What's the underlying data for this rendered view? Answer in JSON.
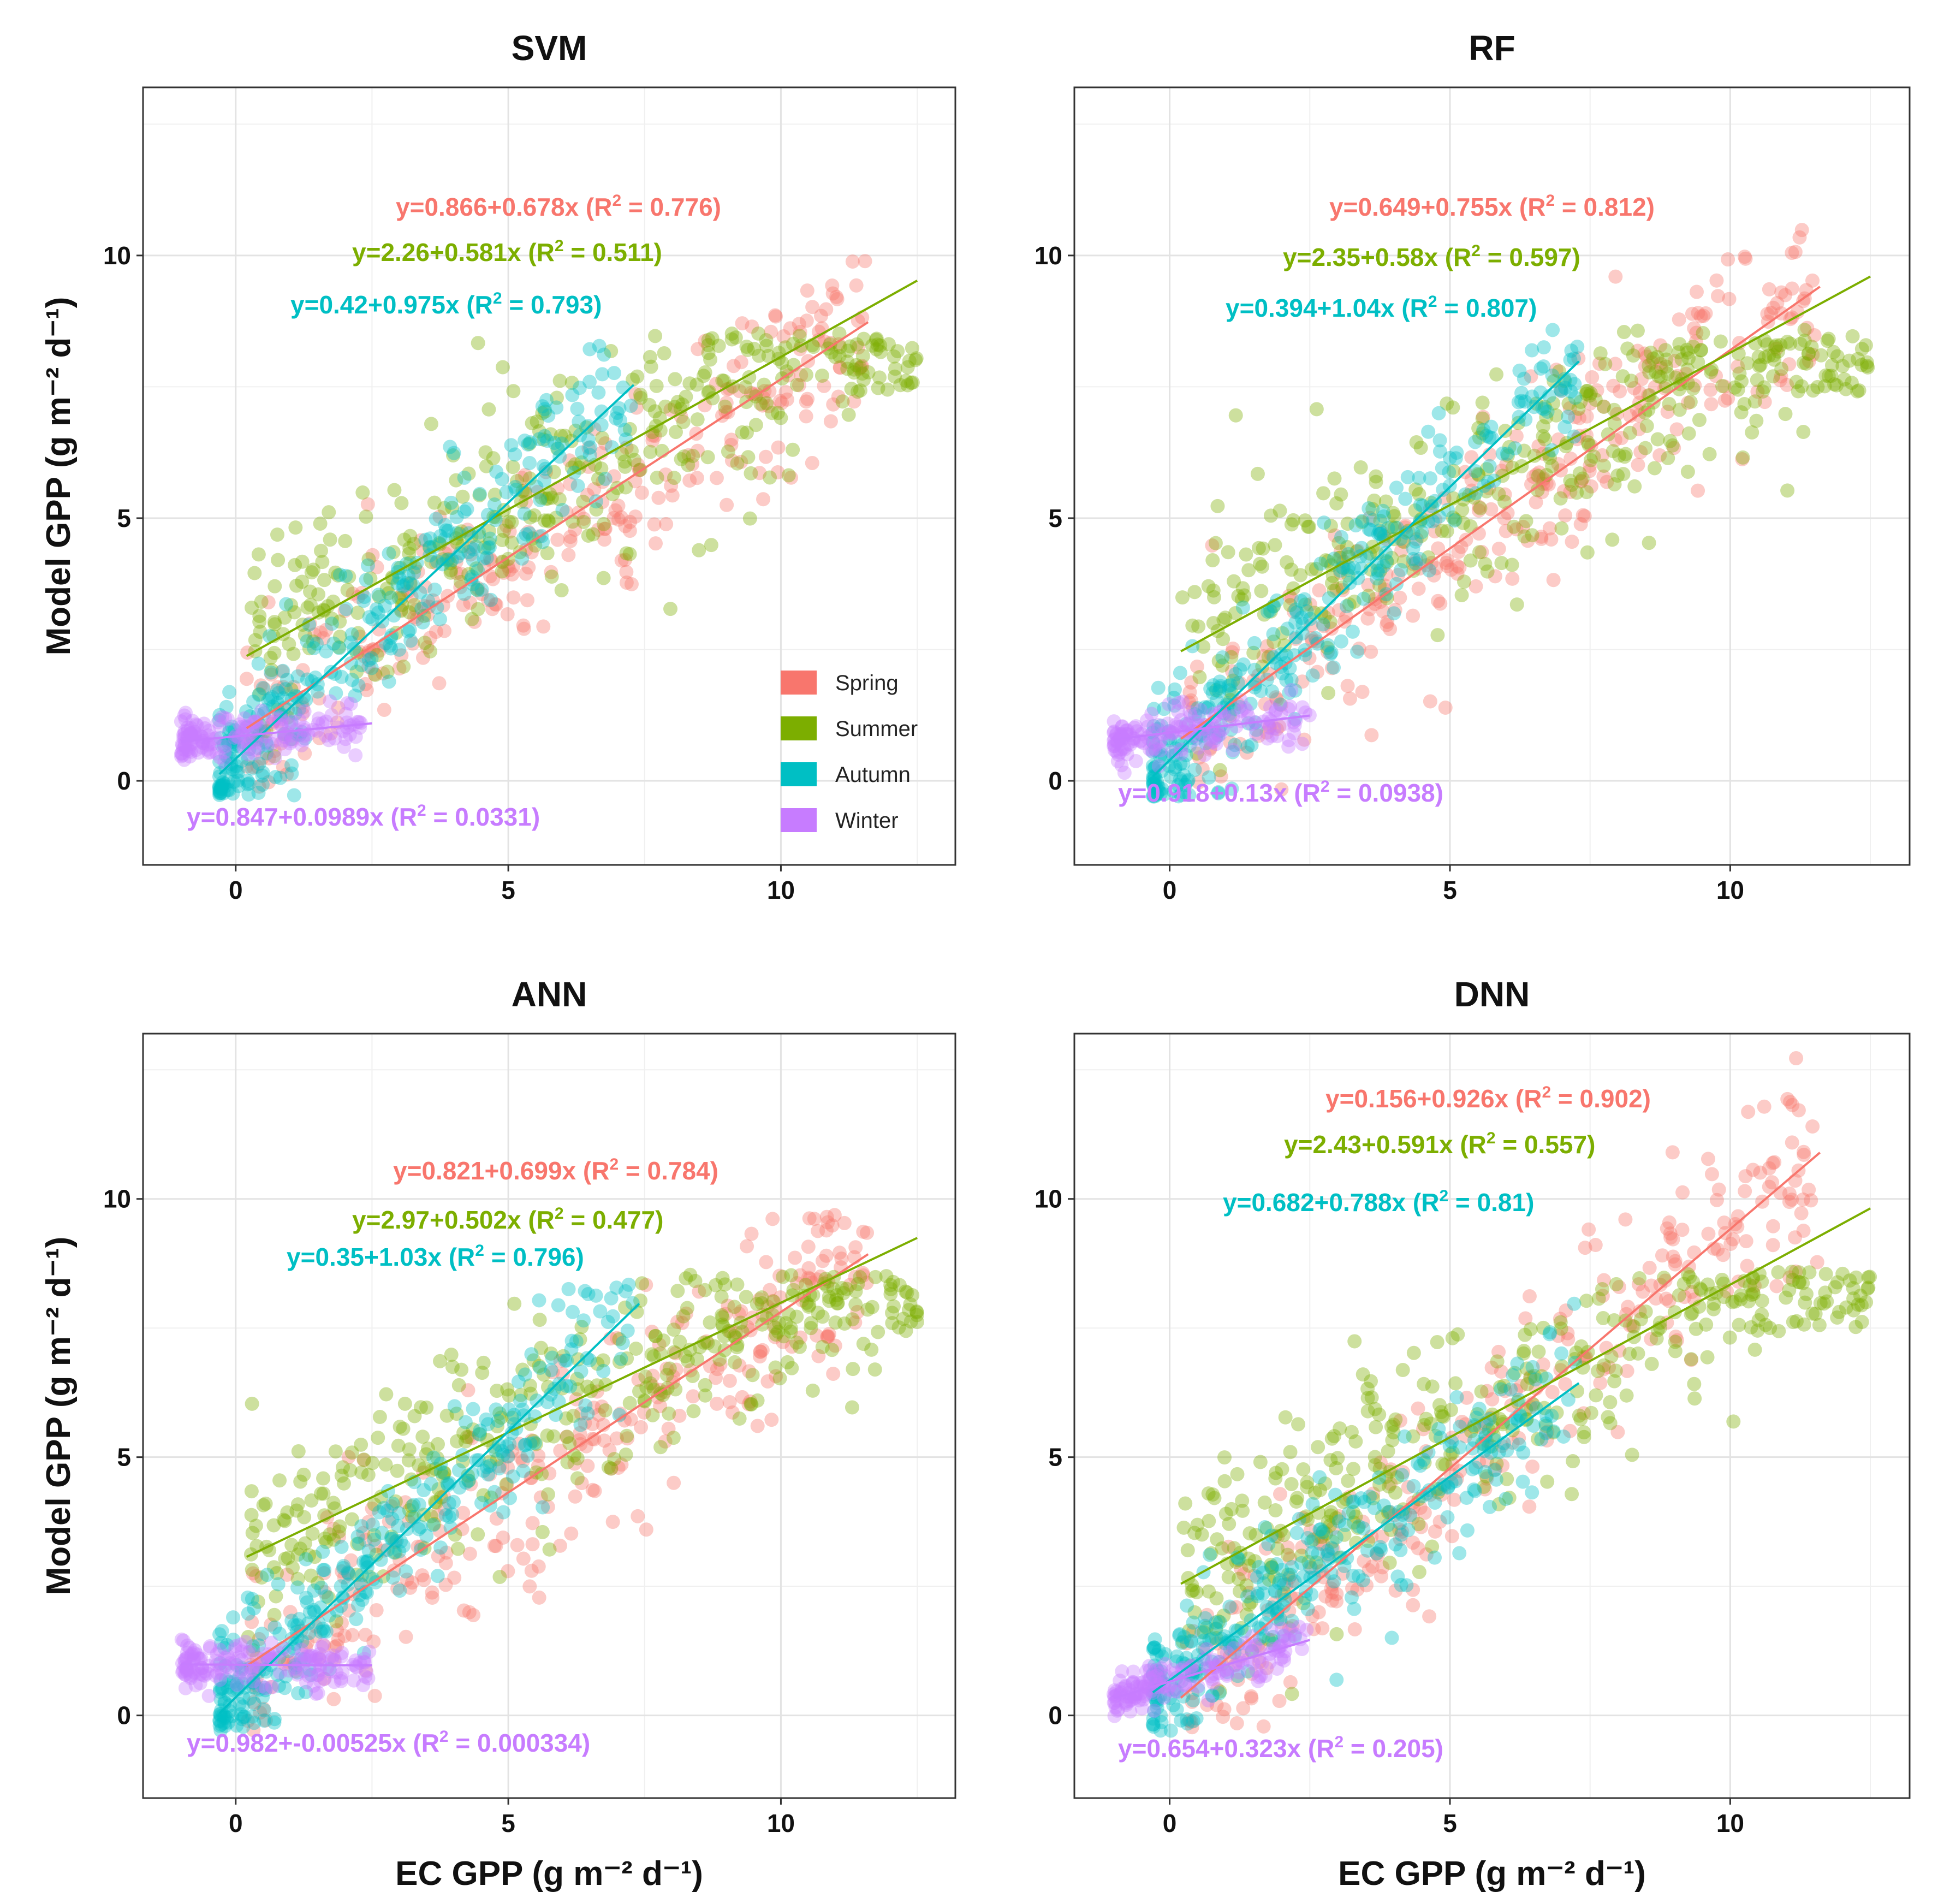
{
  "chart_data": {
    "type": "scatter",
    "xlabel": "EC GPP (g m⁻² d⁻¹)",
    "ylabel": "Model GPP (g m⁻² d⁻¹)",
    "xlim": [
      -1.7,
      13.2
    ],
    "ylim": [
      -1.6,
      13.2
    ],
    "xticks": [
      0,
      5,
      10
    ],
    "yticks": [
      0,
      5,
      10
    ],
    "legend": {
      "position": "inside-bottom-right",
      "entries": [
        "Spring",
        "Summer",
        "Autumn",
        "Winter"
      ]
    },
    "colors": {
      "Spring": "#F8766D",
      "Summer": "#7CAE00",
      "Autumn": "#00BFC4",
      "Winter": "#C77CFF"
    },
    "panels": [
      {
        "title": "SVM",
        "fits": [
          {
            "season": "Spring",
            "intercept": 0.866,
            "slope": 0.678,
            "r2": "0.776",
            "x_range": [
              0.2,
              11.6
            ],
            "label_prefix": "y=0.866+0.678x (R",
            "label_suffix": " = 0.776)"
          },
          {
            "season": "Summer",
            "intercept": 2.26,
            "slope": 0.581,
            "r2": "0.511",
            "x_range": [
              0.2,
              12.5
            ],
            "label_prefix": "y=2.26+0.581x (R",
            "label_suffix": " = 0.511)"
          },
          {
            "season": "Autumn",
            "intercept": 0.42,
            "slope": 0.975,
            "r2": "0.793",
            "x_range": [
              -0.3,
              7.3
            ],
            "label_prefix": "y=0.42+0.975x (R",
            "label_suffix": " = 0.793)"
          },
          {
            "season": "Winter",
            "intercept": 0.847,
            "slope": 0.0989,
            "r2": "0.0331",
            "x_range": [
              -1.0,
              2.5
            ],
            "label_prefix": "y=0.847+0.0989x (R",
            "label_suffix": " = 0.0331)"
          }
        ]
      },
      {
        "title": "RF",
        "fits": [
          {
            "season": "Spring",
            "intercept": 0.649,
            "slope": 0.755,
            "r2": "0.812",
            "x_range": [
              0.2,
              11.6
            ],
            "label_prefix": "y=0.649+0.755x (R",
            "label_suffix": " = 0.812)"
          },
          {
            "season": "Summer",
            "intercept": 2.35,
            "slope": 0.58,
            "r2": "0.597",
            "x_range": [
              0.2,
              12.5
            ],
            "label_prefix": "y=2.35+0.58x (R",
            "label_suffix": " = 0.597)"
          },
          {
            "season": "Autumn",
            "intercept": 0.394,
            "slope": 1.04,
            "r2": "0.807",
            "x_range": [
              -0.3,
              7.3
            ],
            "label_prefix": "y=0.394+1.04x (R",
            "label_suffix": " = 0.807)"
          },
          {
            "season": "Winter",
            "intercept": 0.918,
            "slope": 0.13,
            "r2": "0.0938",
            "x_range": [
              -1.0,
              2.5
            ],
            "label_prefix": "y=0.918+0.13x (R",
            "label_suffix": " = 0.0938)"
          }
        ]
      },
      {
        "title": "ANN",
        "fits": [
          {
            "season": "Spring",
            "intercept": 0.821,
            "slope": 0.699,
            "r2": "0.784",
            "x_range": [
              0.2,
              11.6
            ],
            "label_prefix": "y=0.821+0.699x (R",
            "label_suffix": " = 0.784)"
          },
          {
            "season": "Summer",
            "intercept": 2.97,
            "slope": 0.502,
            "r2": "0.477",
            "x_range": [
              0.2,
              12.5
            ],
            "label_prefix": "y=2.97+0.502x (R",
            "label_suffix": " = 0.477)"
          },
          {
            "season": "Autumn",
            "intercept": 0.35,
            "slope": 1.03,
            "r2": "0.796",
            "x_range": [
              -0.3,
              7.4
            ],
            "label_prefix": "y=0.35+1.03x (R",
            "label_suffix": " = 0.796)"
          },
          {
            "season": "Winter",
            "intercept": 0.982,
            "slope": -0.00525,
            "r2": "0.000334",
            "x_range": [
              -1.0,
              2.5
            ],
            "label_prefix": "y=0.982+-0.00525x (R",
            "label_suffix": " = 0.000334)"
          }
        ]
      },
      {
        "title": "DNN",
        "fits": [
          {
            "season": "Spring",
            "intercept": 0.156,
            "slope": 0.926,
            "r2": "0.902",
            "x_range": [
              0.2,
              11.6
            ],
            "label_prefix": "y=0.156+0.926x (R",
            "label_suffix": " = 0.902)"
          },
          {
            "season": "Summer",
            "intercept": 2.43,
            "slope": 0.591,
            "r2": "0.557",
            "x_range": [
              0.2,
              12.5
            ],
            "label_prefix": "y=2.43+0.591x (R",
            "label_suffix": " = 0.557)"
          },
          {
            "season": "Autumn",
            "intercept": 0.682,
            "slope": 0.788,
            "r2": "0.81",
            "x_range": [
              -0.3,
              7.3
            ],
            "label_prefix": "y=0.682+0.788x (R",
            "label_suffix": " = 0.81)"
          },
          {
            "season": "Winter",
            "intercept": 0.654,
            "slope": 0.323,
            "r2": "0.205",
            "x_range": [
              -1.0,
              2.5
            ],
            "label_prefix": "y=0.654+0.323x (R",
            "label_suffix": " = 0.205)"
          }
        ]
      }
    ]
  }
}
